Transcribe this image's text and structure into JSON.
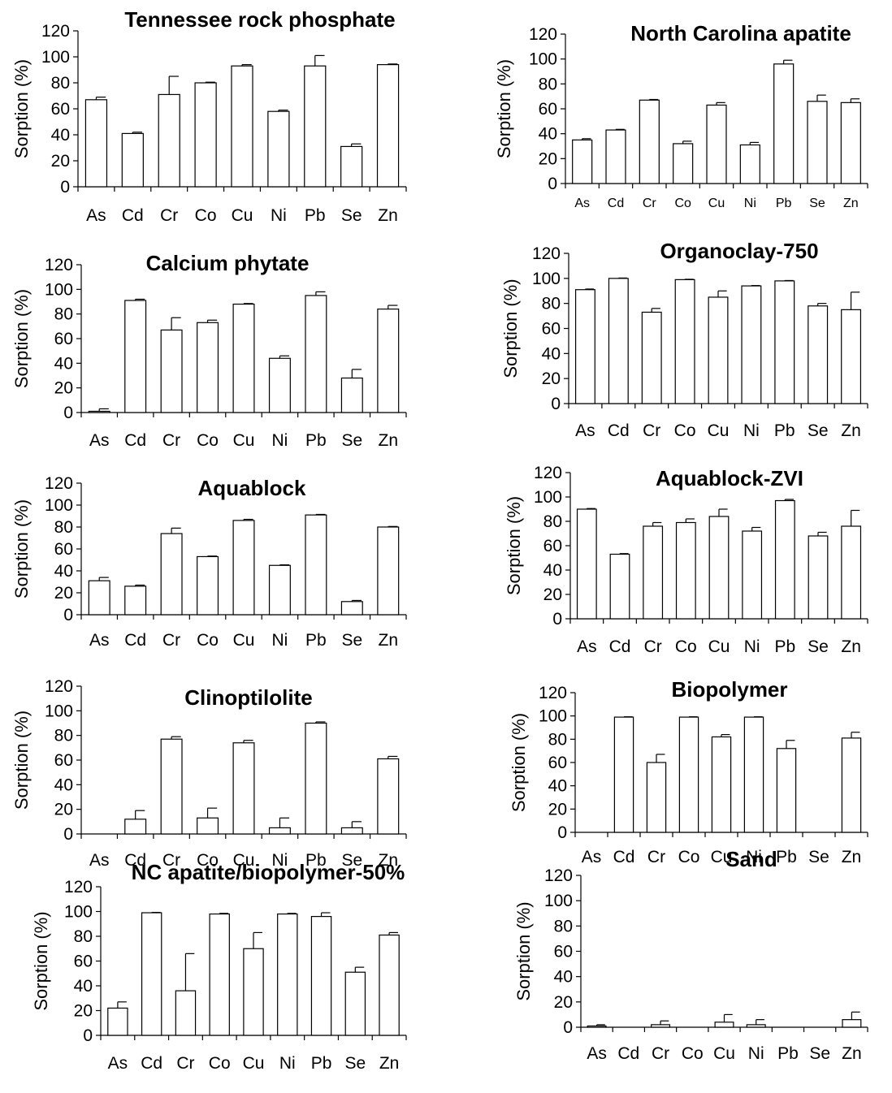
{
  "chart_data": [
    {
      "type": "bar",
      "title": "Tennessee rock phosphate",
      "ylabel": "Sorption (%)",
      "ylim": [
        0,
        120
      ],
      "yticks": [
        0,
        20,
        40,
        60,
        80,
        100,
        120
      ],
      "categories": [
        "As",
        "Cd",
        "Cr",
        "Co",
        "Cu",
        "Ni",
        "Pb",
        "Se",
        "Zn"
      ],
      "values": [
        67,
        41,
        71,
        80,
        93,
        58,
        93,
        31,
        94
      ],
      "errors": [
        2,
        1,
        14,
        0.5,
        1,
        1,
        8,
        2,
        0.5
      ],
      "grid": false
    },
    {
      "type": "bar",
      "title": "North Carolina apatite",
      "ylabel": "Sorption (%)",
      "ylim": [
        0,
        120
      ],
      "yticks": [
        0,
        20,
        40,
        60,
        80,
        100,
        120
      ],
      "categories": [
        "As",
        "Cd",
        "Cr",
        "Co",
        "Cu",
        "Ni",
        "Pb",
        "Se",
        "Zn"
      ],
      "values": [
        35,
        43,
        67,
        32,
        63,
        31,
        96,
        66,
        65
      ],
      "errors": [
        1,
        0.5,
        0.5,
        2,
        2,
        2,
        3,
        5,
        3
      ],
      "grid": false
    },
    {
      "type": "bar",
      "title": "Calcium phytate",
      "ylabel": "Sorption (%)",
      "ylim": [
        0,
        120
      ],
      "yticks": [
        0,
        20,
        40,
        60,
        80,
        100,
        120
      ],
      "categories": [
        "As",
        "Cd",
        "Cr",
        "Co",
        "Cu",
        "Ni",
        "Pb",
        "Se",
        "Zn"
      ],
      "values": [
        1,
        91,
        67,
        73,
        88,
        44,
        95,
        28,
        84
      ],
      "errors": [
        2,
        1,
        10,
        2,
        0.5,
        2,
        3,
        7,
        3
      ],
      "grid": false
    },
    {
      "type": "bar",
      "title": "Organoclay-750",
      "ylabel": "Sorption (%)",
      "ylim": [
        0,
        120
      ],
      "yticks": [
        0,
        20,
        40,
        60,
        80,
        100,
        120
      ],
      "categories": [
        "As",
        "Cd",
        "Cr",
        "Co",
        "Cu",
        "Ni",
        "Pb",
        "Se",
        "Zn"
      ],
      "values": [
        91,
        100,
        73,
        99,
        85,
        94,
        98,
        78,
        75
      ],
      "errors": [
        0.5,
        0.3,
        3,
        0.3,
        5,
        0.3,
        0.3,
        2,
        14
      ],
      "grid": false
    },
    {
      "type": "bar",
      "title": "Aquablock",
      "ylabel": "Sorption (%)",
      "ylim": [
        0,
        120
      ],
      "yticks": [
        0,
        20,
        40,
        60,
        80,
        100,
        120
      ],
      "categories": [
        "As",
        "Cd",
        "Cr",
        "Co",
        "Cu",
        "Ni",
        "Pb",
        "Se",
        "Zn"
      ],
      "values": [
        31,
        26,
        74,
        53,
        86,
        45,
        91,
        12,
        80
      ],
      "errors": [
        3,
        1,
        5,
        0.5,
        1,
        0.5,
        0.5,
        1,
        0.5
      ],
      "grid": false
    },
    {
      "type": "bar",
      "title": "Aquablock-ZVI",
      "ylabel": "Sorption (%)",
      "ylim": [
        0,
        120
      ],
      "yticks": [
        0,
        20,
        40,
        60,
        80,
        100,
        120
      ],
      "categories": [
        "As",
        "Cd",
        "Cr",
        "Co",
        "Cu",
        "Ni",
        "Pb",
        "Se",
        "Zn"
      ],
      "values": [
        90,
        53,
        76,
        79,
        84,
        72,
        97,
        68,
        76
      ],
      "errors": [
        0.5,
        0.5,
        3,
        3,
        6,
        3,
        1,
        3,
        13
      ],
      "grid": false
    },
    {
      "type": "bar",
      "title": "Clinoptilolite",
      "ylabel": "Sorption (%)",
      "ylim": [
        0,
        120
      ],
      "yticks": [
        0,
        20,
        40,
        60,
        80,
        100,
        120
      ],
      "categories": [
        "As",
        "Cd",
        "Cr",
        "Co",
        "Cu",
        "Ni",
        "Pb",
        "Se",
        "Zn"
      ],
      "values": [
        0,
        12,
        77,
        13,
        74,
        5,
        90,
        5,
        61
      ],
      "errors": [
        0,
        7,
        2,
        8,
        2,
        8,
        1,
        5,
        2
      ],
      "grid": false
    },
    {
      "type": "bar",
      "title": "Biopolymer",
      "ylabel": "Sorption (%)",
      "ylim": [
        0,
        120
      ],
      "yticks": [
        0,
        20,
        40,
        60,
        80,
        100,
        120
      ],
      "categories": [
        "As",
        "Cd",
        "Cr",
        "Co",
        "Cu",
        "Ni",
        "Pb",
        "Se",
        "Zn"
      ],
      "values": [
        0,
        99,
        60,
        99,
        82,
        99,
        72,
        0,
        81
      ],
      "errors": [
        0,
        0.3,
        7,
        0.3,
        2,
        0.3,
        7,
        0,
        5
      ],
      "grid": false
    },
    {
      "type": "bar",
      "title": "NC apatite/biopolymer-50%",
      "ylabel": "Sorption (%)",
      "ylim": [
        0,
        120
      ],
      "yticks": [
        0,
        20,
        40,
        60,
        80,
        100,
        120
      ],
      "categories": [
        "As",
        "Cd",
        "Cr",
        "Co",
        "Cu",
        "Ni",
        "Pb",
        "Se",
        "Zn"
      ],
      "values": [
        22,
        99,
        36,
        98,
        70,
        98,
        96,
        51,
        81
      ],
      "errors": [
        5,
        0.3,
        30,
        0.5,
        13,
        0.5,
        3,
        4,
        2
      ],
      "grid": false
    },
    {
      "type": "bar",
      "title": "Sand",
      "ylabel": "Sorption (%)",
      "ylim": [
        0,
        120
      ],
      "yticks": [
        0,
        20,
        40,
        60,
        80,
        100,
        120
      ],
      "categories": [
        "As",
        "Cd",
        "Cr",
        "Co",
        "Cu",
        "Ni",
        "Pb",
        "Se",
        "Zn"
      ],
      "values": [
        1,
        0,
        2,
        0,
        4,
        2,
        0,
        0,
        6
      ],
      "errors": [
        1,
        0,
        3,
        0,
        6,
        4,
        0,
        0,
        6
      ],
      "grid": false
    }
  ]
}
